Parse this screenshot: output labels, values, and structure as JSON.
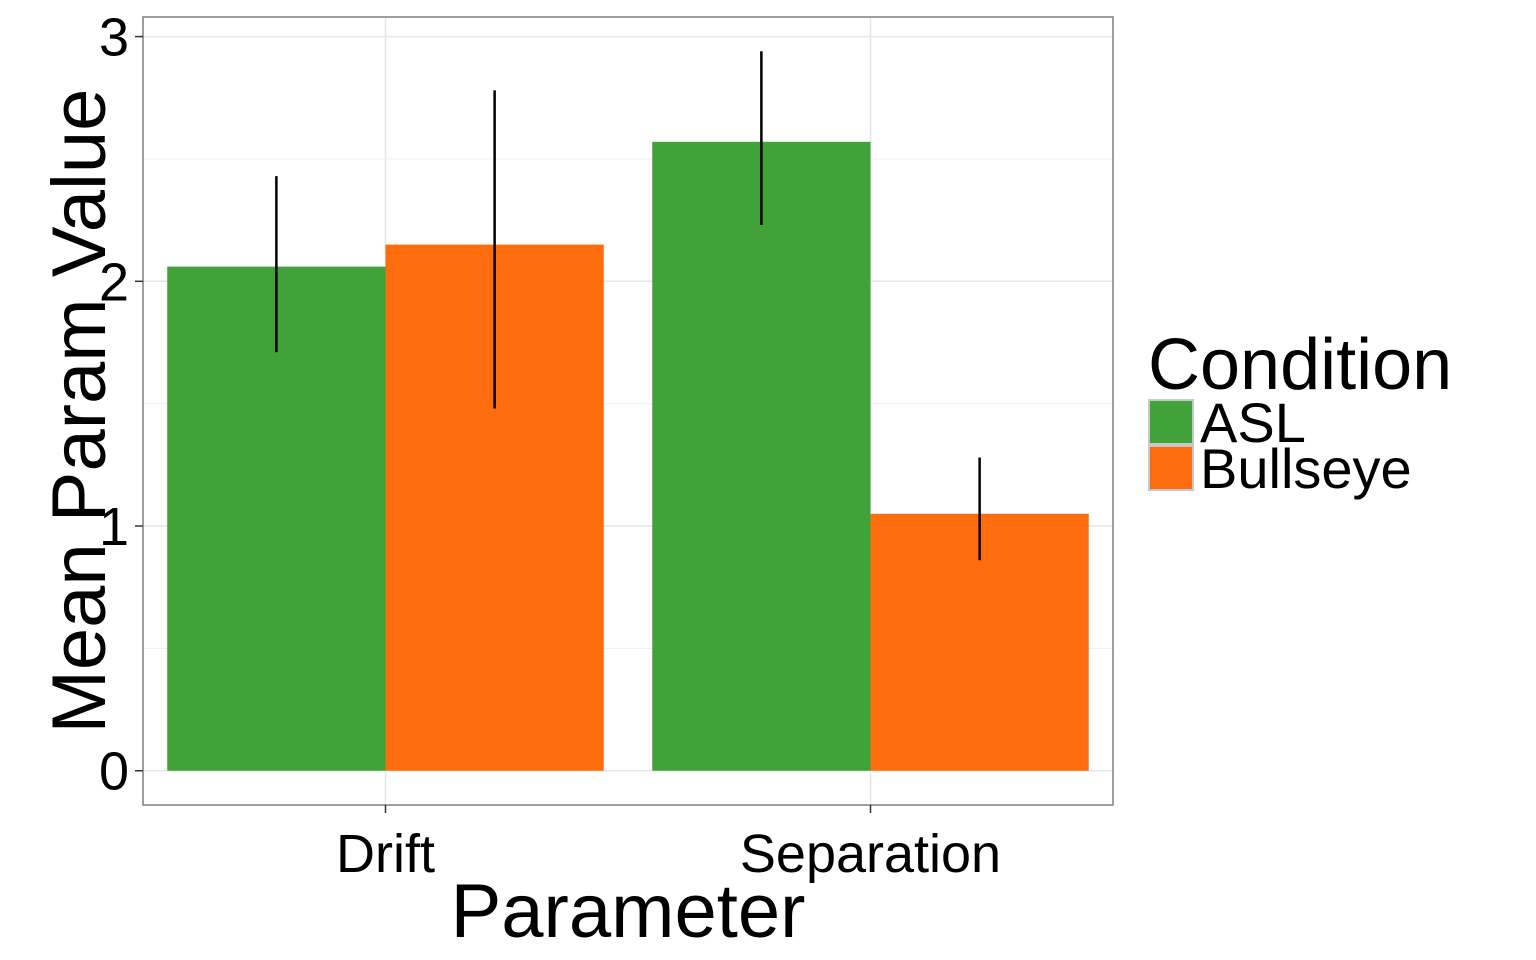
{
  "chart_data": {
    "type": "bar",
    "title": "",
    "xlabel": "Parameter",
    "ylabel": "Mean Param Value",
    "categories": [
      "Drift",
      "Separation"
    ],
    "series": [
      {
        "name": "ASL",
        "color": "#41a23a",
        "values": [
          2.06,
          2.57
        ],
        "error_low": [
          1.71,
          2.23
        ],
        "error_high": [
          2.43,
          2.94
        ]
      },
      {
        "name": "Bullseye",
        "color": "#fd6c0d",
        "values": [
          2.15,
          1.05
        ],
        "error_low": [
          1.48,
          0.86
        ],
        "error_high": [
          2.78,
          1.28
        ]
      }
    ],
    "ylim": [
      -0.14,
      3.08
    ],
    "yticks": [
      0,
      1,
      2,
      3
    ],
    "ytick_labels": [
      "0",
      "1",
      "2",
      "3"
    ],
    "grid": true,
    "legend": {
      "title": "Condition",
      "placement": "right"
    }
  }
}
